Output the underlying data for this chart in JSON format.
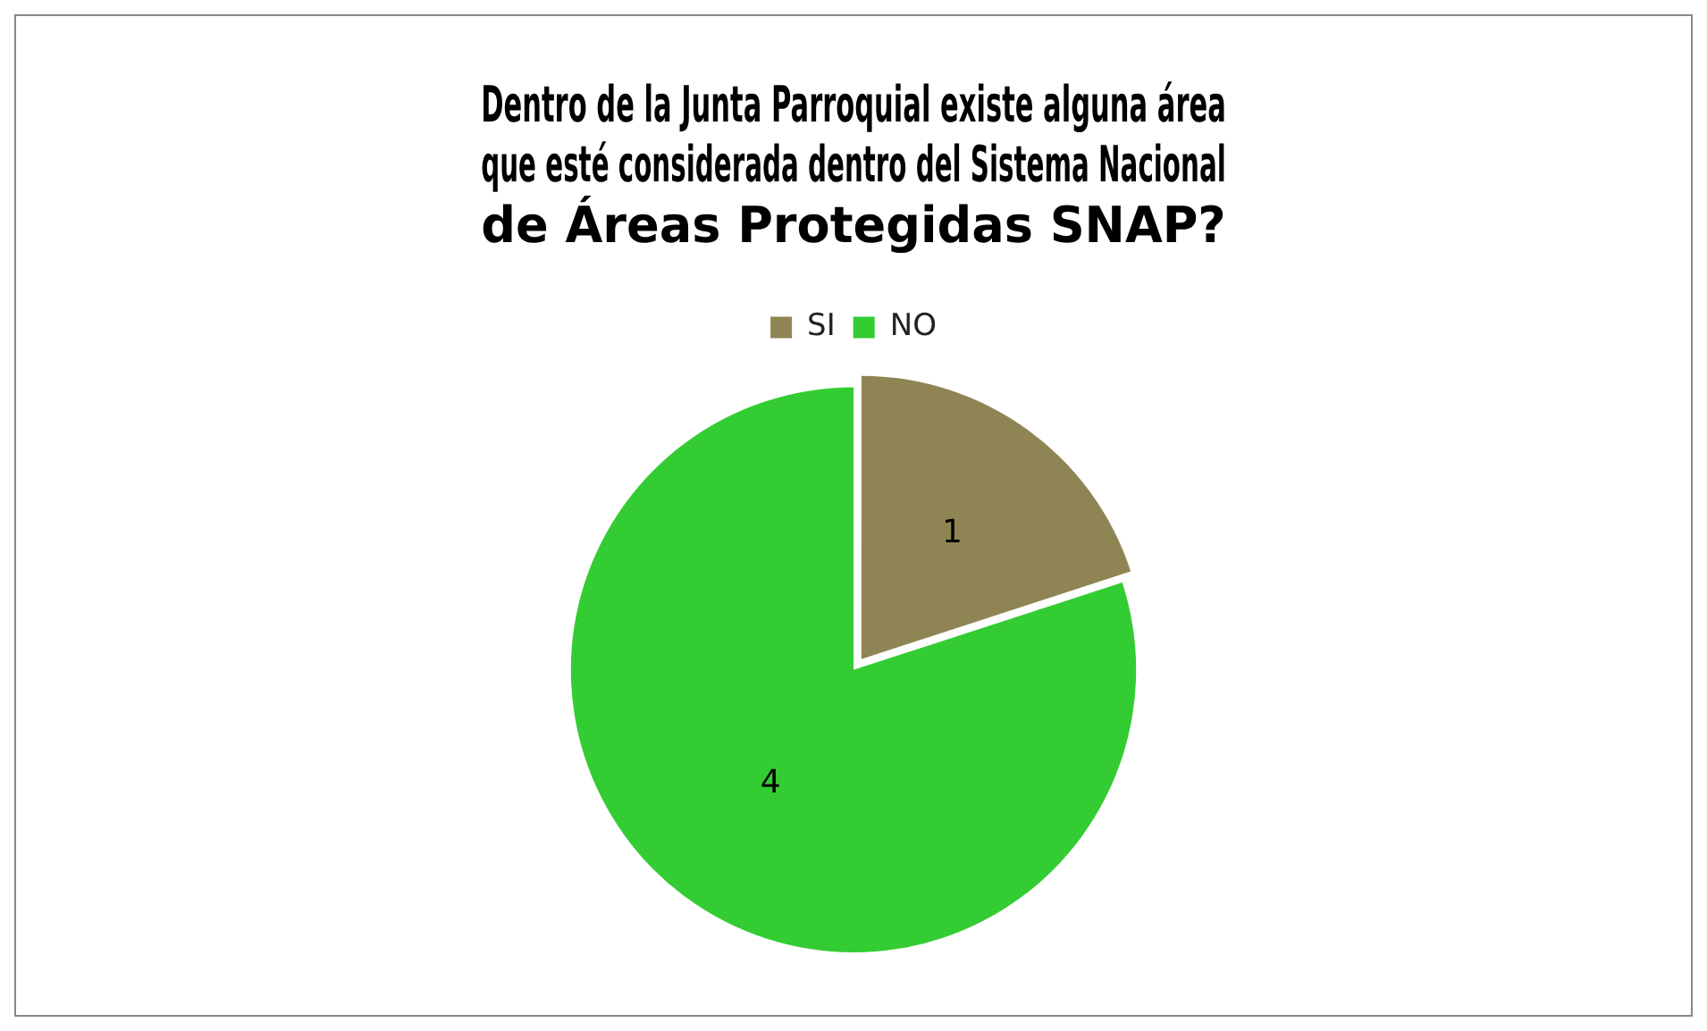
{
  "chart_data": {
    "type": "pie",
    "title": "Dentro de la Junta Parroquial existe alguna área que esté considerada dentro del Sistema Nacional de Áreas Protegidas SNAP?",
    "categories": [
      "SI",
      "NO"
    ],
    "values": [
      1,
      4
    ],
    "colors": [
      "#8f8554",
      "#33cc33"
    ],
    "data_labels": true,
    "legend": "top"
  }
}
